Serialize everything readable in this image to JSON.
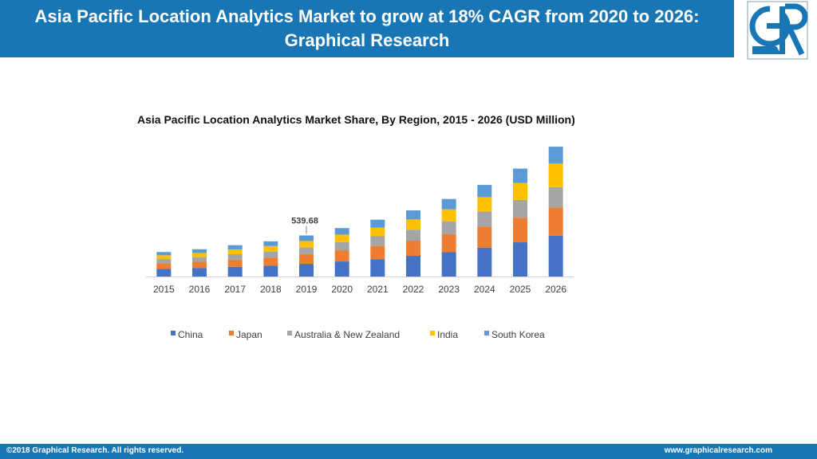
{
  "header": {
    "title": "Asia Pacific Location Analytics Market to grow at 18% CAGR from 2020 to 2026: Graphical Research"
  },
  "logo": {
    "icon": "graphical-research-logo",
    "color": "#1876b5"
  },
  "footer": {
    "copyright": "©2018 Graphical Research. All rights reserved.",
    "website": "www.graphicalresearch.com"
  },
  "colors": {
    "brand": "#1876b5"
  },
  "chart_data": {
    "type": "bar",
    "stacked": true,
    "title": "Asia Pacific Location Analytics Market Share, By Region, 2015 - 2026 (USD Million)",
    "categories": [
      "2015",
      "2016",
      "2017",
      "2018",
      "2019",
      "2020",
      "2021",
      "2022",
      "2023",
      "2024",
      "2025",
      "2026"
    ],
    "series": [
      {
        "name": "China",
        "color": "#4472c4",
        "values": [
          99,
          111,
          128,
          143,
          167,
          198,
          228,
          272,
          320,
          380,
          450,
          535
        ]
      },
      {
        "name": "Japan",
        "color": "#ed7d31",
        "values": [
          75,
          82,
          95,
          106,
          126,
          147,
          174,
          199,
          236,
          276,
          324,
          373
        ]
      },
      {
        "name": "Australia & New Zealand",
        "color": "#a5a5a5",
        "values": [
          56,
          62,
          70,
          80,
          90,
          108,
          127,
          144,
          168,
          198,
          233,
          268
        ]
      },
      {
        "name": "India",
        "color": "#ffc000",
        "values": [
          49,
          55,
          64,
          72,
          84,
          98,
          114,
          136,
          160,
          190,
          223,
          309
        ]
      },
      {
        "name": "South Korea",
        "color": "#5b9bd5",
        "values": [
          43,
          49,
          55,
          62,
          73,
          86,
          104,
          119,
          136,
          160,
          189,
          222
        ]
      }
    ],
    "annotations": [
      {
        "category": "2019",
        "text": "539.68"
      }
    ],
    "ylim": [
      0,
      1750
    ],
    "grid": false,
    "legend": "bottom"
  }
}
